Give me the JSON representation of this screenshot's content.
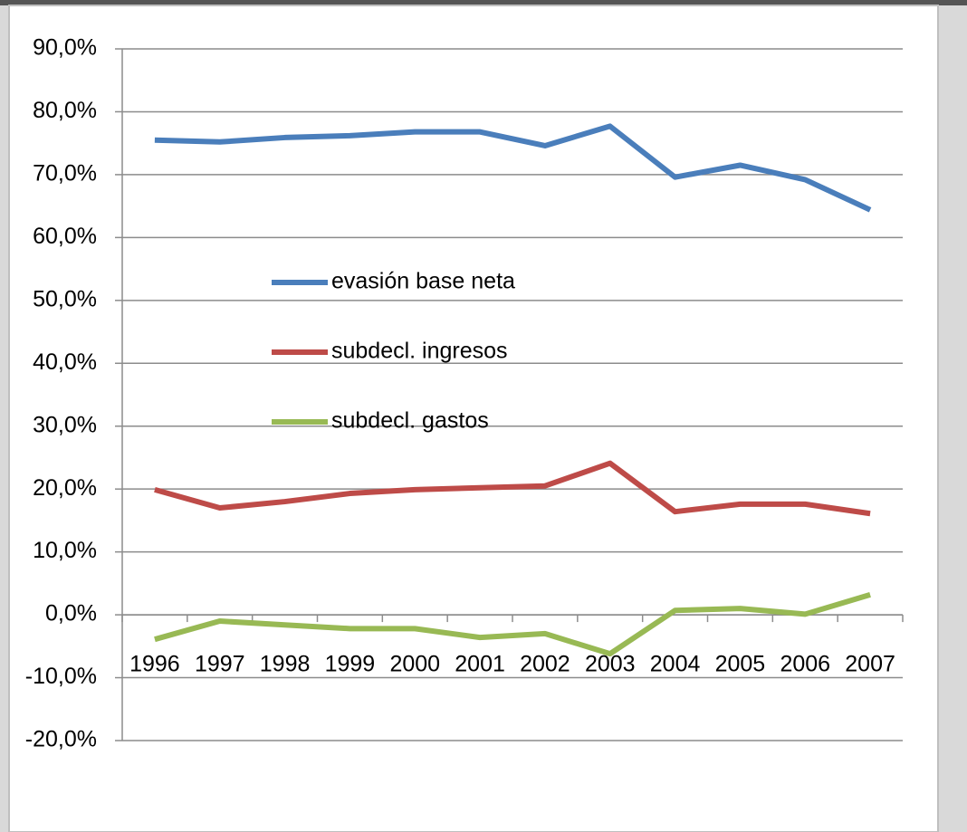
{
  "chart_data": {
    "type": "line",
    "categories": [
      "1996",
      "1997",
      "1998",
      "1999",
      "2000",
      "2001",
      "2002",
      "2003",
      "2004",
      "2005",
      "2006",
      "2007"
    ],
    "series": [
      {
        "name": "evasión base neta",
        "color": "#4a7ebb",
        "values": [
          75.5,
          75.2,
          75.9,
          76.2,
          76.8,
          76.8,
          74.6,
          77.7,
          69.6,
          71.5,
          69.2,
          64.4
        ]
      },
      {
        "name": "subdecl. ingresos",
        "color": "#be4b48",
        "values": [
          19.9,
          17.0,
          18.0,
          19.3,
          19.9,
          20.2,
          20.5,
          24.1,
          16.4,
          17.6,
          17.6,
          16.1
        ]
      },
      {
        "name": "subdecl. gastos",
        "color": "#98b954",
        "values": [
          -3.9,
          -1.0,
          -1.6,
          -2.2,
          -2.2,
          -3.6,
          -3.0,
          -6.2,
          0.7,
          1.0,
          0.1,
          3.2
        ]
      }
    ],
    "ylim": [
      -20,
      90
    ],
    "yticks": [
      {
        "value": -20,
        "label": "-20,0%"
      },
      {
        "value": -10,
        "label": "-10,0%"
      },
      {
        "value": 0,
        "label": "0,0%"
      },
      {
        "value": 10,
        "label": "10,0%"
      },
      {
        "value": 20,
        "label": "20,0%"
      },
      {
        "value": 30,
        "label": "30,0%"
      },
      {
        "value": 40,
        "label": "40,0%"
      },
      {
        "value": 50,
        "label": "50,0%"
      },
      {
        "value": 60,
        "label": "60,0%"
      },
      {
        "value": 70,
        "label": "70,0%"
      },
      {
        "value": 80,
        "label": "80,0%"
      },
      {
        "value": 90,
        "label": "90,0%"
      }
    ],
    "grid": true,
    "legend": "center-left"
  }
}
